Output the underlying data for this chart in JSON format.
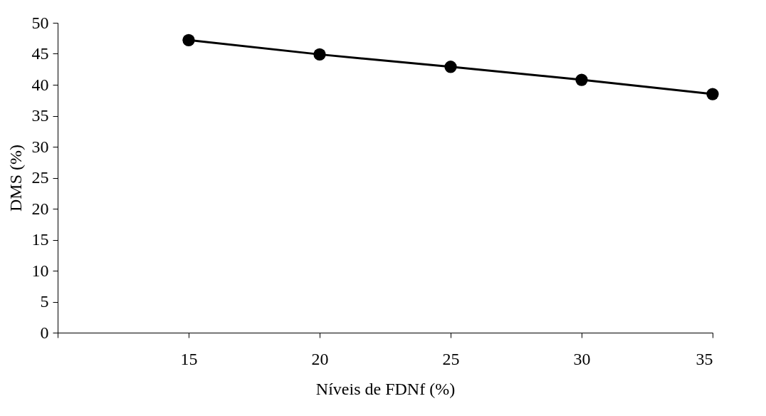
{
  "chart_data": {
    "type": "line",
    "xlabel": "Níveis de FDNf (%)",
    "ylabel": "DMS (%)",
    "x": [
      15,
      20,
      25,
      30,
      35
    ],
    "series": [
      {
        "color": "#000000",
        "values": [
          47.2,
          44.9,
          42.9,
          40.8,
          38.5
        ]
      }
    ],
    "xlim": [
      10,
      35
    ],
    "xticks": [
      {
        "value": 10,
        "label": null
      },
      15,
      20,
      25,
      30,
      35
    ],
    "ylim": [
      0,
      50
    ],
    "yticks": [
      0,
      5,
      10,
      15,
      20,
      25,
      30,
      35,
      40,
      45,
      50
    ],
    "grid": false,
    "legend": false,
    "marker": "circle",
    "line_style": "solid"
  }
}
